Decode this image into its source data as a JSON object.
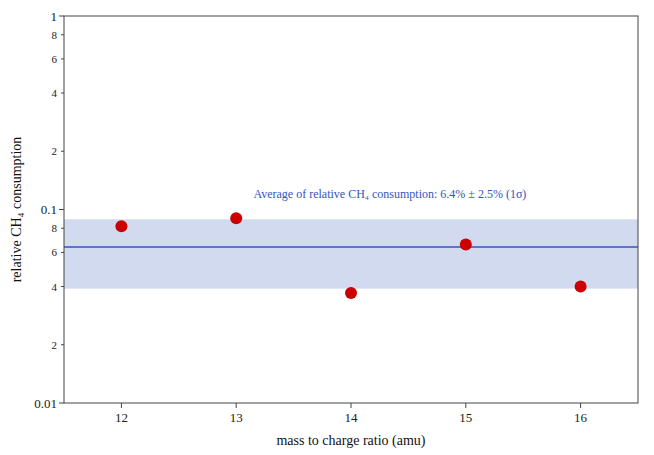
{
  "chart_data": {
    "type": "scatter",
    "x": [
      12,
      13,
      14,
      15,
      16
    ],
    "values": [
      0.082,
      0.09,
      0.037,
      0.066,
      0.04
    ],
    "color": "#cc0000",
    "average": {
      "value": 0.064,
      "band": [
        0.039,
        0.089
      ],
      "color": "#3355bb"
    },
    "annotation": {
      "text": "Average of relative CH₄ consumption: 6.4% ± 2.5% (1σ)",
      "x": 13.15,
      "y": 0.112
    },
    "xlabel": "mass to charge ratio (amu)",
    "ylabel": "relative CH₄ consumption",
    "xlim": [
      11.5,
      16.5
    ],
    "ylim": [
      0.01,
      1.0
    ],
    "xticks": [
      12,
      13,
      14,
      15,
      16
    ],
    "yticks": [
      0.01,
      {
        "value": 0.02,
        "label": "2"
      },
      {
        "value": 0.04,
        "label": "4"
      },
      {
        "value": 0.06,
        "label": "6"
      },
      {
        "value": 0.08,
        "label": "8"
      },
      0.1,
      {
        "value": 0.2,
        "label": "2"
      },
      {
        "value": 0.4,
        "label": "4"
      },
      {
        "value": 0.6,
        "label": "6"
      },
      {
        "value": 0.8,
        "label": "8"
      },
      1
    ],
    "log": "y",
    "grid": false
  }
}
